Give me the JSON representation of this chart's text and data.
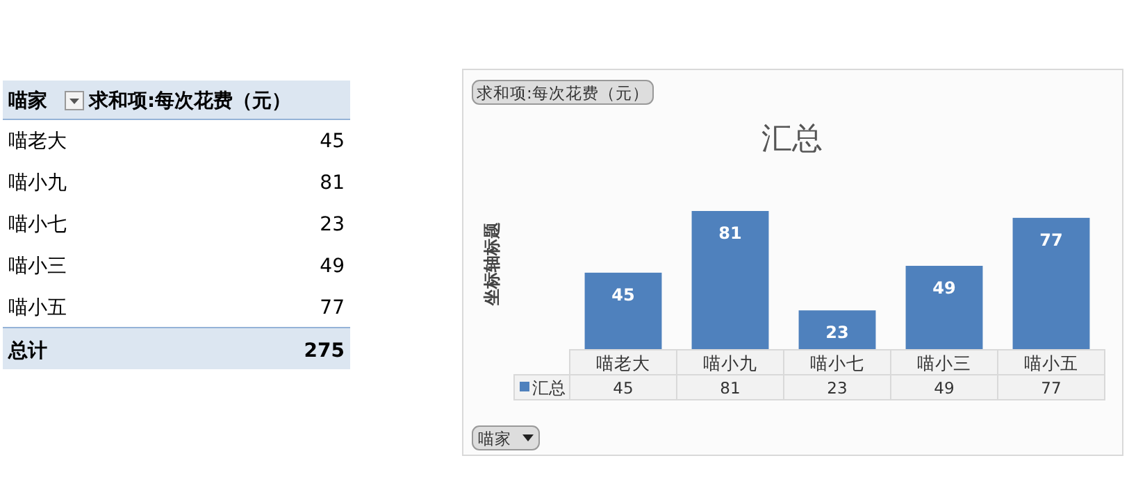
{
  "chart_data": [
    {
      "type": "other",
      "xlabel": "喵家",
      "ylabel": "求和项:每次花费（元）",
      "categories": [
        "喵老大",
        "喵小九",
        "喵小七",
        "喵小三",
        "喵小五"
      ],
      "values": [
        45,
        81,
        23,
        49,
        77
      ],
      "data_labels": true,
      "annotations": [
        "总计",
        "275"
      ]
    },
    {
      "type": "bar",
      "title": "汇总",
      "ylabel": "坐标轴标题",
      "categories": [
        "喵老大",
        "喵小九",
        "喵小七",
        "喵小三",
        "喵小五"
      ],
      "series": [
        {
          "name": "汇总",
          "color": "#4f81bd",
          "values": [
            45,
            81,
            23,
            49,
            77
          ],
          "value_labels": [
            "45",
            "81",
            "23",
            "49",
            "77"
          ]
        }
      ],
      "data_labels": true,
      "annotations": [
        "求和项:每次花费（元）",
        "喵家",
        "45",
        "81",
        "23",
        "49",
        "77"
      ]
    }
  ]
}
